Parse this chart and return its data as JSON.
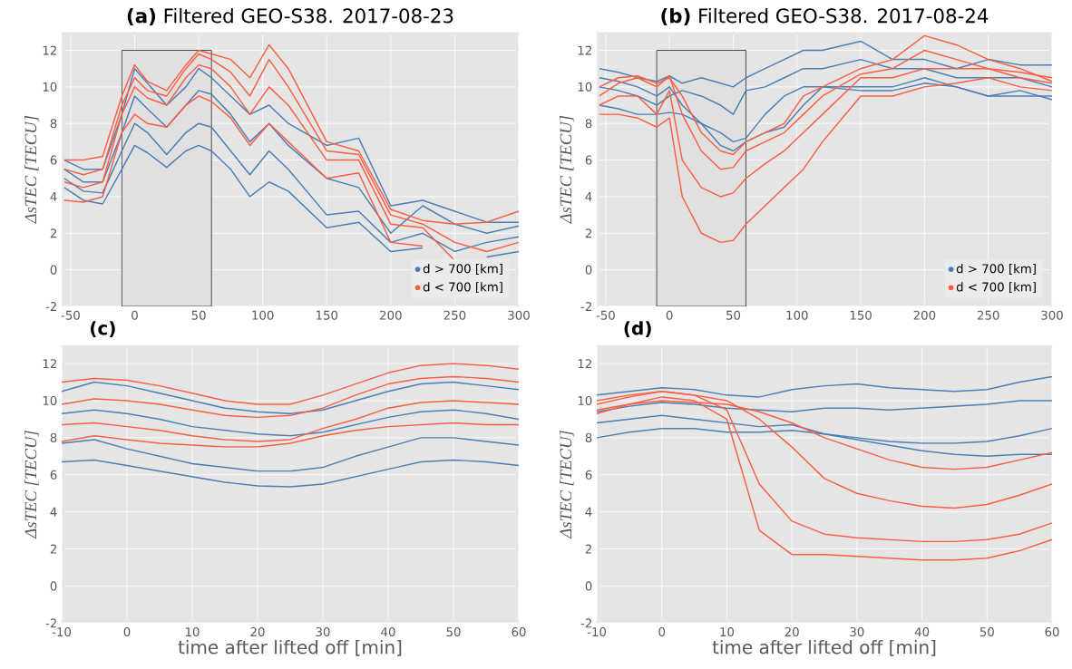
{
  "chart_data": [
    {
      "type": "line",
      "title": "**(a)** Filtered GEO-S38. 2017-08-23",
      "ylabel": "ΔsTEC [TECU]",
      "xlim": [
        -57,
        300
      ],
      "ylim": [
        -2,
        13
      ],
      "xticks": [
        -50,
        0,
        50,
        100,
        150,
        200,
        250,
        300
      ],
      "yticks": [
        -2,
        0,
        2,
        4,
        6,
        8,
        10,
        12
      ],
      "grid": true,
      "legend": "bottom right",
      "line_style": "solid",
      "bands": [
        {
          "axis": "x",
          "from": -10,
          "to": 60,
          "color": "#e0e0e0"
        }
      ],
      "x": [
        -55,
        -40,
        -25,
        -10,
        0,
        10,
        25,
        40,
        50,
        60,
        75,
        90,
        105,
        120,
        150,
        175,
        200,
        225,
        250,
        275,
        300
      ],
      "series": [
        {
          "name": "d > 700 [km]",
          "color": "#4a7fb5",
          "values": [
            4.5,
            3.8,
            3.6,
            5.5,
            6.8,
            6.4,
            5.6,
            6.5,
            6.8,
            6.5,
            5.5,
            4.0,
            4.8,
            4.3,
            2.3,
            2.6,
            1.0,
            1.2,
            null,
            0.7,
            1.0
          ]
        },
        {
          "color": "#4a7fb5",
          "values": [
            5,
            4.3,
            4.2,
            6.5,
            8.0,
            7.5,
            6.3,
            7.5,
            8.0,
            7.8,
            6.5,
            5.2,
            6.5,
            5.5,
            3.0,
            3.2,
            1.5,
            2.0,
            1.0,
            1.5,
            1.8
          ]
        },
        {
          "color": "#4a7fb5",
          "values": [
            5.5,
            4.8,
            4.8,
            7.5,
            9.5,
            8.8,
            7.8,
            9.0,
            9.8,
            9.6,
            8.5,
            7.0,
            8.0,
            6.8,
            5.0,
            4.5,
            2.0,
            3.5,
            2.5,
            2.0,
            2.4
          ]
        },
        {
          "color": "#4a7fb5",
          "values": [
            6,
            5.5,
            5.5,
            8.5,
            11.0,
            10.2,
            9.0,
            10.0,
            11.0,
            10.5,
            9.5,
            8.5,
            9.0,
            8.0,
            6.8,
            7.2,
            3.5,
            3.8,
            3.2,
            2.6,
            2.6
          ]
        },
        {
          "name": "d < 700 [km]",
          "color": "#fa5f44",
          "values": [
            3.8,
            3.7,
            4.0,
            7.5,
            8.5,
            8.0,
            7.8,
            9.0,
            9.5,
            9.2,
            8.3,
            6.8,
            8.0,
            7.0,
            5.0,
            5.3,
            1.5,
            1.3,
            null,
            null,
            null
          ]
        },
        {
          "color": "#fa5f44",
          "values": [
            4.8,
            4.5,
            4.8,
            8.5,
            10.0,
            9.4,
            9.0,
            10.5,
            11.2,
            11.0,
            10.0,
            8.5,
            10.0,
            9.0,
            6.0,
            6.0,
            2.5,
            2.3,
            0.5,
            null,
            null
          ]
        },
        {
          "color": "#fa5f44",
          "values": [
            5.5,
            5.2,
            5.5,
            9.0,
            10.5,
            9.8,
            9.5,
            11.0,
            11.8,
            11.5,
            10.8,
            9.5,
            11.5,
            10.0,
            6.5,
            6.3,
            3.0,
            2.5,
            1.5,
            1.0,
            1.5
          ]
        },
        {
          "color": "#fa5f44",
          "values": [
            6.0,
            6.0,
            6.2,
            9.5,
            11.2,
            10.3,
            9.8,
            11.2,
            12.0,
            11.8,
            11.5,
            10.5,
            12.3,
            11.0,
            7.0,
            6.5,
            3.3,
            2.7,
            2.5,
            2.6,
            3.2
          ]
        }
      ]
    },
    {
      "type": "line",
      "title": "**(b)** Filtered GEO-S38. 2017-08-24",
      "ylabel": "ΔsTEC [TECU]",
      "xlim": [
        -57,
        300
      ],
      "ylim": [
        -2,
        13
      ],
      "xticks": [
        -50,
        0,
        50,
        100,
        150,
        200,
        250,
        300
      ],
      "yticks": [
        -2,
        0,
        2,
        4,
        6,
        8,
        10,
        12
      ],
      "grid": true,
      "legend": "bottom right",
      "line_style": "solid",
      "bands": [
        {
          "axis": "x",
          "from": -10,
          "to": 60,
          "color": "#e0e0e0"
        }
      ],
      "x": [
        -55,
        -40,
        -25,
        -10,
        0,
        10,
        25,
        40,
        50,
        60,
        75,
        90,
        105,
        120,
        150,
        175,
        200,
        225,
        250,
        275,
        300
      ],
      "series": [
        {
          "name": "d > 700 [km]",
          "color": "#4a7fb5",
          "values": [
            11.0,
            10.8,
            10.5,
            10.3,
            10.6,
            10.2,
            10.5,
            10.2,
            10.0,
            10.5,
            11.0,
            11.5,
            12.0,
            12.0,
            12.5,
            11.5,
            11.5,
            11.0,
            11.5,
            11.2,
            11.2
          ]
        },
        {
          "color": "#4a7fb5",
          "values": [
            10.0,
            9.8,
            9.5,
            9.0,
            9.5,
            9.8,
            9.5,
            9.0,
            8.5,
            9.8,
            10.0,
            10.5,
            11.0,
            11.0,
            11.5,
            11.0,
            11.0,
            10.5,
            10.5,
            10.5,
            10.0
          ]
        },
        {
          "color": "#4a7fb5",
          "values": [
            9.0,
            8.8,
            8.5,
            8.5,
            8.6,
            8.5,
            8.0,
            7.5,
            7.0,
            7.2,
            8.5,
            9.5,
            10.0,
            10.0,
            9.8,
            9.8,
            10.2,
            10.0,
            9.5,
            9.5,
            9.5
          ]
        },
        {
          "color": "#4a7fb5",
          "values": [
            10.5,
            10.3,
            10.0,
            9.5,
            10.0,
            9.0,
            8.0,
            6.8,
            6.5,
            7.0,
            7.5,
            7.8,
            9.0,
            10.0,
            10.0,
            10.0,
            10.5,
            10.0,
            9.5,
            9.8,
            9.3
          ]
        },
        {
          "name": "d < 700 [km]",
          "color": "#fa5f44",
          "values": [
            8.5,
            8.5,
            8.3,
            7.8,
            8.3,
            4.0,
            2.0,
            1.5,
            1.6,
            2.5,
            3.5,
            4.5,
            5.5,
            7.0,
            9.5,
            9.5,
            10.0,
            10.2,
            10.5,
            10.0,
            9.8
          ]
        },
        {
          "color": "#fa5f44",
          "values": [
            9.0,
            9.5,
            9.5,
            8.5,
            9.8,
            6.0,
            4.5,
            4.0,
            4.2,
            5.0,
            5.8,
            6.5,
            7.5,
            8.5,
            10.5,
            10.5,
            11.0,
            11.0,
            11.0,
            10.5,
            10.2
          ]
        },
        {
          "color": "#fa5f44",
          "values": [
            9.5,
            10.2,
            10.5,
            10.0,
            10.6,
            8.5,
            6.5,
            5.5,
            5.6,
            6.5,
            7.0,
            7.5,
            8.5,
            9.5,
            10.7,
            11.0,
            12.0,
            11.5,
            11.0,
            10.8,
            10.5
          ]
        },
        {
          "color": "#fa5f44",
          "values": [
            10.0,
            10.5,
            10.6,
            10.2,
            10.5,
            9.5,
            7.5,
            6.5,
            6.3,
            7.0,
            7.5,
            8.0,
            9.5,
            10.0,
            11.0,
            11.5,
            12.8,
            12.3,
            11.5,
            11.0,
            10.3
          ]
        }
      ]
    },
    {
      "type": "line",
      "title": "**(c)**",
      "xlabel": "time after lifted off [min]",
      "ylabel": "ΔsTEC [TECU]",
      "xlim": [
        -10,
        60
      ],
      "ylim": [
        -2,
        13
      ],
      "xticks": [
        -10,
        0,
        10,
        20,
        30,
        40,
        50,
        60
      ],
      "yticks": [
        -2,
        0,
        2,
        4,
        6,
        8,
        10,
        12
      ],
      "grid": true,
      "line_style": "solid",
      "x": [
        -10,
        -5,
        0,
        5,
        10,
        15,
        20,
        25,
        30,
        35,
        40,
        45,
        50,
        55,
        60
      ],
      "series": [
        {
          "color": "#4a7fb5",
          "values": [
            6.7,
            6.8,
            6.5,
            6.2,
            5.9,
            5.6,
            5.4,
            5.35,
            5.5,
            5.9,
            6.3,
            6.7,
            6.8,
            6.7,
            6.5
          ]
        },
        {
          "color": "#4a7fb5",
          "values": [
            7.7,
            7.9,
            7.4,
            7.0,
            6.6,
            6.4,
            6.2,
            6.2,
            6.4,
            7.0,
            7.5,
            8.0,
            8.0,
            7.8,
            7.6
          ]
        },
        {
          "color": "#4a7fb5",
          "values": [
            9.3,
            9.5,
            9.3,
            9.0,
            8.6,
            8.4,
            8.2,
            8.1,
            8.3,
            8.7,
            9.1,
            9.4,
            9.5,
            9.3,
            9.0
          ]
        },
        {
          "color": "#4a7fb5",
          "values": [
            10.5,
            11.0,
            10.8,
            10.4,
            10.0,
            9.6,
            9.4,
            9.3,
            9.5,
            10.0,
            10.5,
            10.9,
            11.0,
            10.8,
            10.6
          ]
        },
        {
          "color": "#fa5f44",
          "values": [
            7.8,
            8.1,
            7.9,
            7.7,
            7.6,
            7.5,
            7.5,
            7.7,
            8.1,
            8.4,
            8.6,
            8.7,
            8.8,
            8.7,
            8.7
          ]
        },
        {
          "color": "#fa5f44",
          "values": [
            8.7,
            8.8,
            8.6,
            8.4,
            8.1,
            7.9,
            7.8,
            7.9,
            8.5,
            9.0,
            9.6,
            9.9,
            10.0,
            9.9,
            9.8
          ]
        },
        {
          "color": "#fa5f44",
          "values": [
            9.8,
            10.1,
            10.0,
            9.8,
            9.5,
            9.2,
            9.1,
            9.2,
            9.6,
            10.3,
            10.9,
            11.2,
            11.3,
            11.2,
            11.0
          ]
        },
        {
          "color": "#fa5f44",
          "values": [
            11.0,
            11.2,
            11.1,
            10.8,
            10.4,
            10.0,
            9.8,
            9.8,
            10.3,
            10.9,
            11.5,
            11.9,
            12.0,
            11.9,
            11.7
          ]
        }
      ]
    },
    {
      "type": "line",
      "title": "**(d)**",
      "xlabel": "time after lifted off [min]",
      "ylabel": "ΔsTEC [TECU]",
      "xlim": [
        -10,
        60
      ],
      "ylim": [
        -2,
        13
      ],
      "xticks": [
        -10,
        0,
        10,
        20,
        30,
        40,
        50,
        60
      ],
      "yticks": [
        -2,
        0,
        2,
        4,
        6,
        8,
        10,
        12
      ],
      "grid": true,
      "line_style": "solid",
      "x": [
        -10,
        -5,
        0,
        5,
        10,
        15,
        20,
        25,
        30,
        35,
        40,
        45,
        50,
        55,
        60
      ],
      "series": [
        {
          "color": "#4a7fb5",
          "values": [
            8.0,
            8.3,
            8.5,
            8.5,
            8.3,
            8.3,
            8.4,
            8.2,
            7.9,
            7.6,
            7.3,
            7.1,
            7.0,
            7.1,
            7.1
          ]
        },
        {
          "color": "#4a7fb5",
          "values": [
            8.8,
            9.0,
            9.2,
            9.0,
            8.8,
            8.6,
            8.7,
            8.2,
            8.0,
            7.8,
            7.7,
            7.7,
            7.8,
            8.1,
            8.5
          ]
        },
        {
          "color": "#4a7fb5",
          "values": [
            9.4,
            9.7,
            9.9,
            9.8,
            9.6,
            9.5,
            9.4,
            9.6,
            9.6,
            9.5,
            9.6,
            9.7,
            9.8,
            10.0,
            10.0
          ]
        },
        {
          "color": "#4a7fb5",
          "values": [
            10.3,
            10.5,
            10.7,
            10.6,
            10.3,
            10.2,
            10.6,
            10.8,
            10.9,
            10.7,
            10.6,
            10.5,
            10.6,
            11.0,
            11.3
          ]
        },
        {
          "color": "#fa5f44",
          "values": [
            9.5,
            9.8,
            10.2,
            10.0,
            9.0,
            3.0,
            1.7,
            1.7,
            1.6,
            1.5,
            1.4,
            1.4,
            1.5,
            1.9,
            2.5
          ]
        },
        {
          "color": "#fa5f44",
          "values": [
            10.0,
            10.3,
            10.5,
            10.3,
            9.5,
            5.5,
            3.5,
            2.8,
            2.6,
            2.5,
            2.4,
            2.4,
            2.5,
            2.8,
            3.4
          ]
        },
        {
          "color": "#fa5f44",
          "values": [
            9.8,
            10.2,
            10.5,
            10.3,
            10.0,
            9.0,
            7.5,
            5.8,
            5.0,
            4.6,
            4.3,
            4.2,
            4.4,
            4.9,
            5.5
          ]
        },
        {
          "color": "#fa5f44",
          "values": [
            9.3,
            9.8,
            10.0,
            9.9,
            9.8,
            9.4,
            8.8,
            8.0,
            7.4,
            6.8,
            6.4,
            6.3,
            6.4,
            6.8,
            7.2
          ]
        }
      ]
    }
  ]
}
